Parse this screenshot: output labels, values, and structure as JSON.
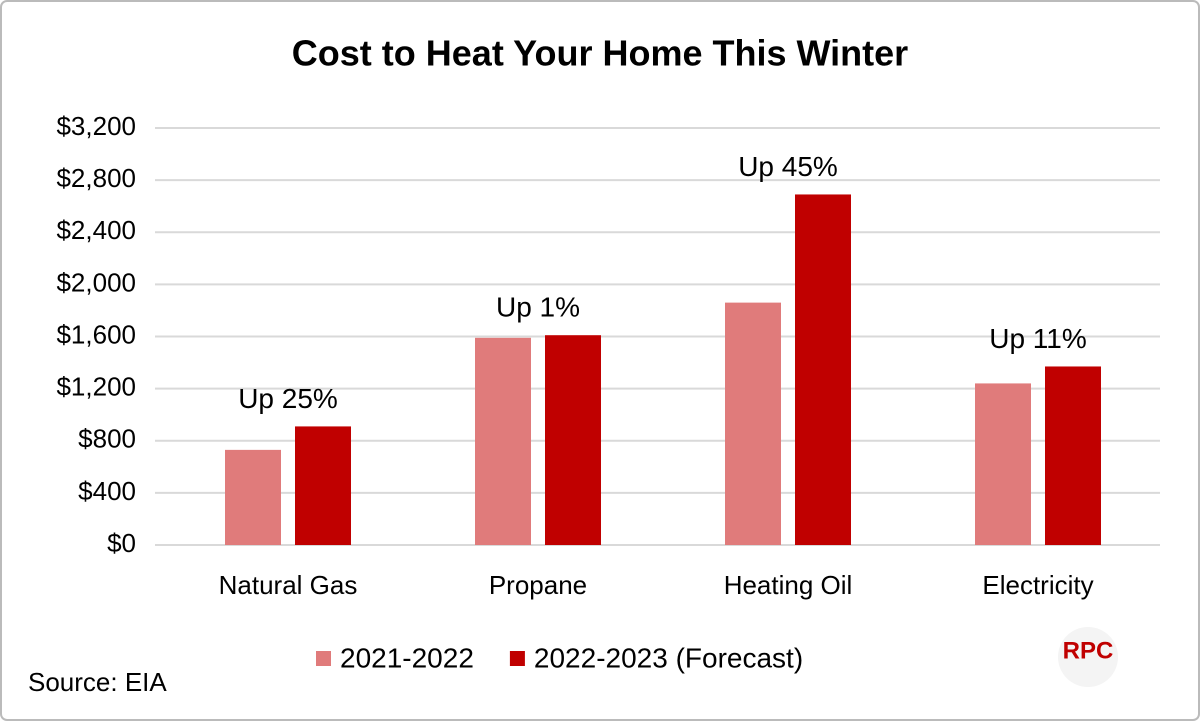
{
  "chart_data": {
    "type": "bar",
    "title": "Cost to Heat Your Home This Winter",
    "categories": [
      "Natural Gas",
      "Propane",
      "Heating Oil",
      "Electricity"
    ],
    "series": [
      {
        "name": "2021-2022",
        "color": "#e07b7b",
        "values": [
          730,
          1590,
          1860,
          1240
        ]
      },
      {
        "name": "2022-2023 (Forecast)",
        "color": "#c00000",
        "values": [
          910,
          1610,
          2690,
          1370
        ]
      }
    ],
    "annotations": [
      "Up 25%",
      "Up 1%",
      "Up 45%",
      "Up 11%"
    ],
    "ylim": [
      0,
      3200
    ],
    "yticks": [
      {
        "value": 0,
        "label": "$0"
      },
      {
        "value": 400,
        "label": "$400"
      },
      {
        "value": 800,
        "label": "$800"
      },
      {
        "value": 1200,
        "label": "$1,200"
      },
      {
        "value": 1600,
        "label": "$1,600"
      },
      {
        "value": 2000,
        "label": "$2,000"
      },
      {
        "value": 2400,
        "label": "$2,400"
      },
      {
        "value": 2800,
        "label": "$2,800"
      },
      {
        "value": 3200,
        "label": "$3,200"
      }
    ],
    "grid": true,
    "legend": "bottom",
    "source": "Source: EIA",
    "logo": "RPC"
  }
}
